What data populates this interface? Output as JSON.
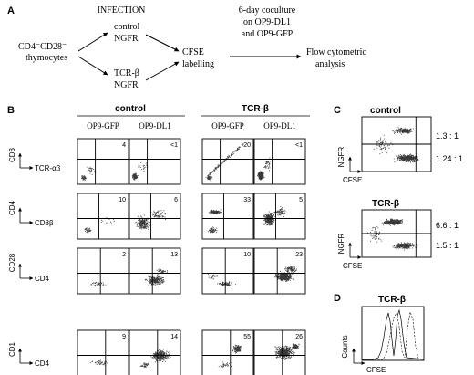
{
  "panel_letters": [
    "A",
    "B",
    "C",
    "D"
  ],
  "panel_a": {
    "infection_label": "INFECTION",
    "start_label": "CD4⁻CD28⁻ thymocytes",
    "start_line1": "CD4⁻CD28⁻",
    "start_line2": "thymocytes",
    "control": {
      "line1": "control",
      "line2": "NGFR"
    },
    "tcr": {
      "line1": "TCR-β",
      "line2": "NGFR"
    },
    "cfse": {
      "line1": "CFSE",
      "line2": "labelling"
    },
    "coculture": {
      "line1": "6-day coculture",
      "line2": "on OP9-DL1",
      "line3": "and OP9-GFP"
    },
    "flow": {
      "line1": "Flow cytometric",
      "line2": "analysis"
    }
  },
  "panel_b": {
    "group_control": "control",
    "group_tcr": "TCR-β",
    "columns": [
      "OP9-GFP",
      "OP9-DL1",
      "OP9-GFP",
      "OP9-DL1"
    ],
    "rows": [
      {
        "y_axis": "CD3",
        "x_axis": "TCR-αβ",
        "values": [
          "4",
          "<1",
          "20",
          "<1"
        ]
      },
      {
        "y_axis": "CD4",
        "x_axis": "CD8β",
        "values": [
          "10",
          "6",
          "33",
          "5"
        ]
      },
      {
        "y_axis": "CD28",
        "x_axis": "CD4",
        "values": [
          "2",
          "13",
          "10",
          "23"
        ]
      },
      {
        "y_axis": "CD1",
        "x_axis": "CD4",
        "values": [
          "9",
          "14",
          "55",
          "26"
        ]
      }
    ]
  },
  "panel_c": {
    "plots": [
      {
        "title": "control",
        "y_axis": "NGFR",
        "x_axis": "CFSE",
        "ratio_top": "1.3 : 1",
        "ratio_bottom": "1.24 : 1"
      },
      {
        "title": "TCR-β",
        "y_axis": "NGFR",
        "x_axis": "CFSE",
        "ratio_top": "6.6 : 1",
        "ratio_bottom": "1.5 : 1"
      }
    ]
  },
  "panel_d": {
    "title": "TCR-β",
    "y_axis": "Counts",
    "x_axis": "CFSE"
  }
}
